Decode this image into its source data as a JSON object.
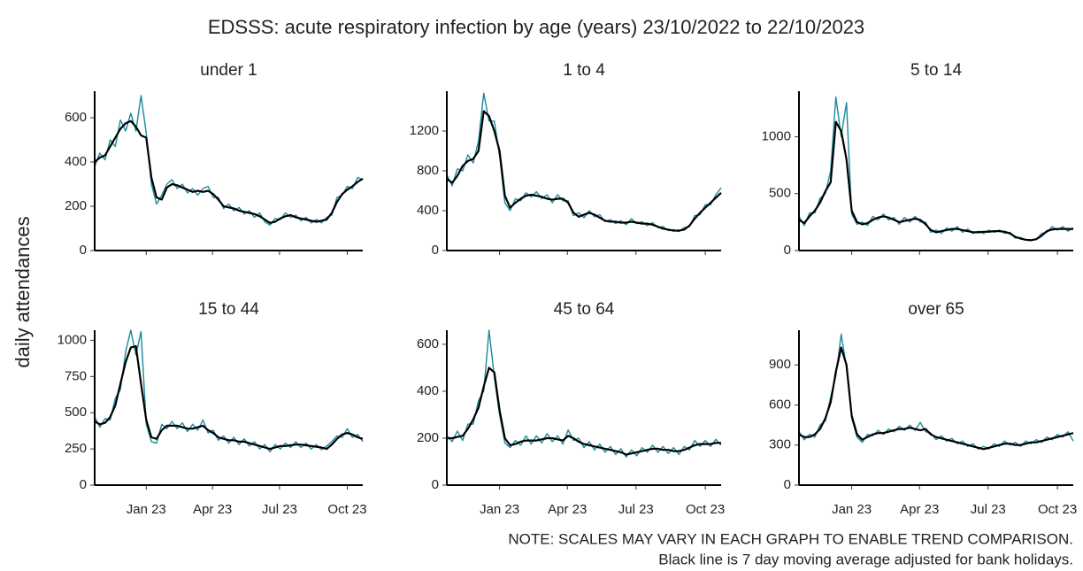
{
  "title": "EDSSS: acute respiratory infection by age (years) 23/10/2022 to 22/10/2023",
  "y_label": "daily attendances",
  "notes": [
    "NOTE: SCALES MAY VARY IN EACH GRAPH TO ENABLE TREND COMPARISON.",
    "Black line is 7 day moving average adjusted for bank holidays."
  ],
  "x": [
    0,
    7,
    14,
    21,
    28,
    35,
    42,
    49,
    56,
    63,
    70,
    77,
    84,
    91,
    98,
    105,
    112,
    119,
    126,
    133,
    140,
    147,
    154,
    161,
    168,
    175,
    182,
    189,
    196,
    203,
    210,
    217,
    224,
    231,
    238,
    245,
    252,
    259,
    266,
    273,
    280,
    287,
    294,
    301,
    308,
    315,
    322,
    329,
    336,
    343,
    350,
    357,
    364
  ],
  "xlim": [
    0,
    364
  ],
  "xticks": [
    {
      "value": 70,
      "label": "Jan 23"
    },
    {
      "value": 160,
      "label": "Apr 23"
    },
    {
      "value": 251,
      "label": "Jul 23"
    },
    {
      "value": 343,
      "label": "Oct 23"
    }
  ],
  "chart_data": [
    {
      "type": "line",
      "title": "under 1",
      "ylim": [
        0,
        720
      ],
      "yticks": [
        0,
        200,
        400,
        600
      ],
      "series": [
        {
          "color": "#1a8a9e",
          "values": [
            380,
            440,
            410,
            500,
            470,
            590,
            540,
            620,
            540,
            700,
            530,
            300,
            210,
            250,
            300,
            320,
            280,
            300,
            260,
            280,
            250,
            280,
            290,
            240,
            240,
            190,
            210,
            180,
            195,
            165,
            180,
            150,
            170,
            130,
            115,
            145,
            140,
            170,
            150,
            160,
            135,
            150,
            125,
            140,
            125,
            150,
            160,
            240,
            250,
            290,
            280,
            330,
            320
          ]
        },
        {
          "color": "#000000",
          "values": [
            400,
            420,
            430,
            470,
            510,
            550,
            575,
            585,
            560,
            520,
            510,
            330,
            240,
            230,
            285,
            300,
            295,
            285,
            275,
            265,
            270,
            265,
            270,
            255,
            230,
            200,
            195,
            190,
            180,
            175,
            170,
            165,
            155,
            140,
            125,
            130,
            145,
            155,
            160,
            150,
            145,
            140,
            135,
            130,
            135,
            140,
            170,
            220,
            255,
            275,
            290,
            310,
            325
          ]
        }
      ]
    },
    {
      "type": "line",
      "title": "1 to 4",
      "ylim": [
        0,
        1600
      ],
      "yticks": [
        0,
        400,
        800,
        1200
      ],
      "series": [
        {
          "color": "#1a8a9e",
          "values": [
            760,
            650,
            820,
            800,
            960,
            880,
            1100,
            1580,
            1300,
            1300,
            950,
            480,
            400,
            520,
            500,
            580,
            540,
            590,
            520,
            560,
            480,
            560,
            500,
            500,
            350,
            380,
            330,
            400,
            340,
            360,
            290,
            310,
            270,
            300,
            260,
            320,
            270,
            290,
            250,
            280,
            230,
            240,
            200,
            210,
            190,
            230,
            240,
            350,
            360,
            460,
            460,
            560,
            630
          ]
        },
        {
          "color": "#000000",
          "values": [
            720,
            680,
            750,
            850,
            900,
            920,
            1000,
            1400,
            1350,
            1200,
            1000,
            550,
            430,
            480,
            520,
            550,
            560,
            550,
            540,
            520,
            510,
            520,
            520,
            480,
            380,
            340,
            360,
            380,
            360,
            330,
            300,
            290,
            290,
            280,
            280,
            290,
            280,
            270,
            270,
            260,
            240,
            220,
            210,
            200,
            200,
            210,
            250,
            320,
            380,
            430,
            480,
            530,
            580
          ]
        }
      ]
    },
    {
      "type": "line",
      "title": "5 to 14",
      "ylim": [
        0,
        1400
      ],
      "yticks": [
        0,
        500,
        1000
      ],
      "series": [
        {
          "color": "#1a8a9e",
          "values": [
            300,
            220,
            330,
            330,
            460,
            500,
            700,
            1350,
            1000,
            1300,
            320,
            230,
            250,
            220,
            300,
            270,
            320,
            270,
            290,
            230,
            290,
            250,
            300,
            250,
            250,
            160,
            180,
            150,
            200,
            170,
            210,
            160,
            190,
            150,
            170,
            150,
            180,
            160,
            180,
            150,
            160,
            110,
            115,
            90,
            95,
            95,
            150,
            160,
            210,
            180,
            210,
            170,
            200
          ]
        },
        {
          "color": "#000000",
          "values": [
            270,
            240,
            300,
            350,
            420,
            520,
            600,
            1130,
            1050,
            800,
            350,
            250,
            230,
            240,
            270,
            290,
            300,
            290,
            270,
            250,
            260,
            270,
            280,
            270,
            230,
            180,
            160,
            170,
            180,
            190,
            190,
            180,
            170,
            160,
            160,
            165,
            165,
            170,
            170,
            165,
            150,
            120,
            105,
            95,
            90,
            100,
            130,
            170,
            185,
            190,
            190,
            190,
            190
          ]
        }
      ]
    },
    {
      "type": "line",
      "title": "15 to 44",
      "ylim": [
        0,
        1070
      ],
      "yticks": [
        0,
        250,
        500,
        750,
        1000
      ],
      "series": [
        {
          "color": "#1a8a9e",
          "values": [
            470,
            400,
            460,
            450,
            600,
            660,
            920,
            1070,
            900,
            1060,
            420,
            300,
            290,
            420,
            390,
            440,
            390,
            430,
            370,
            420,
            380,
            450,
            360,
            380,
            310,
            340,
            290,
            330,
            280,
            320,
            270,
            300,
            250,
            280,
            230,
            280,
            250,
            290,
            260,
            300,
            260,
            290,
            250,
            280,
            245,
            270,
            300,
            340,
            330,
            390,
            330,
            350,
            300
          ]
        },
        {
          "color": "#000000",
          "values": [
            440,
            420,
            430,
            470,
            550,
            700,
            850,
            950,
            960,
            700,
            450,
            330,
            320,
            380,
            410,
            410,
            410,
            400,
            390,
            390,
            400,
            410,
            380,
            360,
            330,
            320,
            310,
            310,
            300,
            300,
            290,
            280,
            270,
            260,
            250,
            260,
            270,
            270,
            275,
            280,
            280,
            275,
            270,
            265,
            260,
            250,
            280,
            320,
            350,
            360,
            350,
            330,
            320
          ]
        }
      ]
    },
    {
      "type": "line",
      "title": "45 to 64",
      "ylim": [
        0,
        660
      ],
      "yticks": [
        0,
        200,
        400,
        600
      ],
      "series": [
        {
          "color": "#1a8a9e",
          "values": [
            210,
            185,
            230,
            190,
            260,
            260,
            360,
            400,
            660,
            460,
            300,
            180,
            160,
            190,
            170,
            210,
            175,
            210,
            180,
            220,
            185,
            210,
            175,
            235,
            190,
            200,
            160,
            185,
            150,
            175,
            140,
            165,
            130,
            155,
            120,
            150,
            125,
            160,
            140,
            170,
            140,
            165,
            135,
            160,
            130,
            165,
            150,
            190,
            165,
            190,
            165,
            195,
            170
          ]
        },
        {
          "color": "#000000",
          "values": [
            200,
            200,
            205,
            210,
            240,
            280,
            330,
            420,
            500,
            480,
            320,
            200,
            170,
            175,
            185,
            190,
            190,
            190,
            195,
            200,
            200,
            195,
            190,
            210,
            200,
            185,
            175,
            170,
            165,
            160,
            155,
            150,
            145,
            140,
            130,
            135,
            140,
            145,
            150,
            155,
            155,
            150,
            150,
            145,
            145,
            150,
            160,
            170,
            175,
            175,
            175,
            180,
            180
          ]
        }
      ]
    },
    {
      "type": "line",
      "title": "over 65",
      "ylim": [
        0,
        1160
      ],
      "yticks": [
        0,
        300,
        600,
        900
      ],
      "series": [
        {
          "color": "#1a8a9e",
          "values": [
            400,
            340,
            380,
            360,
            450,
            480,
            660,
            820,
            1130,
            880,
            500,
            360,
            320,
            380,
            370,
            410,
            380,
            420,
            400,
            440,
            410,
            450,
            410,
            470,
            400,
            390,
            340,
            370,
            330,
            350,
            310,
            330,
            290,
            310,
            270,
            290,
            270,
            310,
            290,
            330,
            300,
            320,
            290,
            330,
            310,
            340,
            320,
            360,
            340,
            380,
            360,
            400,
            330
          ]
        },
        {
          "color": "#000000",
          "values": [
            380,
            360,
            360,
            380,
            420,
            500,
            620,
            850,
            1030,
            900,
            520,
            380,
            340,
            360,
            380,
            390,
            390,
            400,
            410,
            420,
            420,
            430,
            420,
            410,
            420,
            380,
            360,
            350,
            340,
            330,
            320,
            310,
            300,
            290,
            280,
            270,
            280,
            290,
            300,
            310,
            310,
            300,
            300,
            310,
            320,
            320,
            330,
            340,
            350,
            360,
            370,
            380,
            390
          ]
        }
      ]
    }
  ]
}
